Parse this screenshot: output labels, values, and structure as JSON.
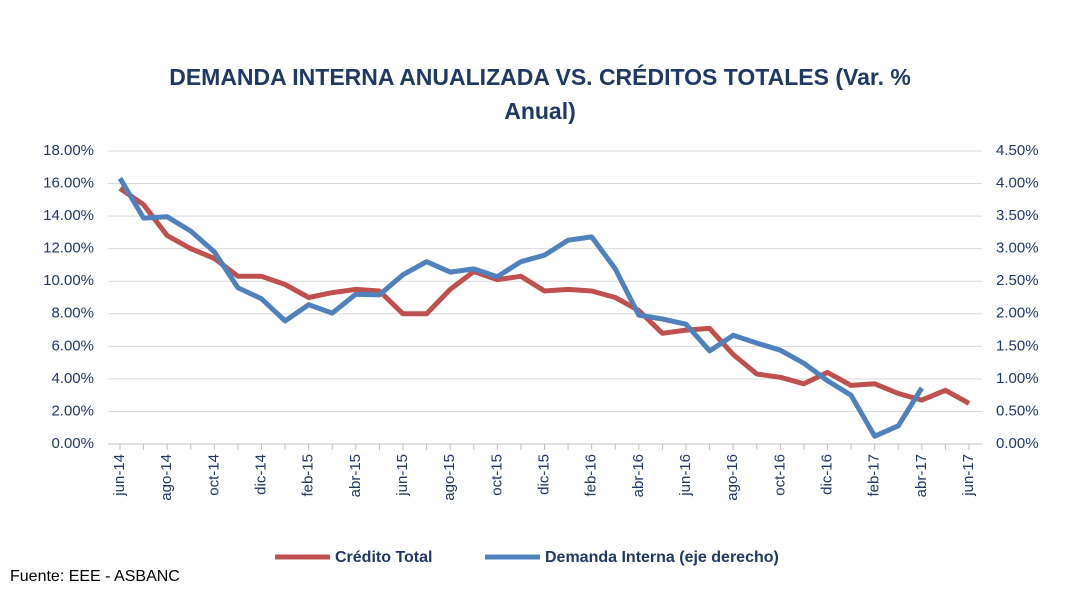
{
  "chart_data": {
    "type": "line",
    "title": "DEMANDA INTERNA ANUALIZADA VS. CRÉDITOS TOTALES (Var. % Anual)",
    "source": "Fuente: EEE - ASBANC",
    "categories": [
      "jun-14",
      null,
      "ago-14",
      null,
      "oct-14",
      null,
      "dic-14",
      null,
      "feb-15",
      null,
      "abr-15",
      null,
      "jun-15",
      null,
      "ago-15",
      null,
      "oct-15",
      null,
      "dic-15",
      null,
      "feb-16",
      null,
      "abr-16",
      null,
      "jun-16",
      null,
      "ago-16",
      null,
      "oct-16",
      null,
      "dic-16",
      null,
      "feb-17",
      null,
      "abr-17",
      null,
      "jun-17"
    ],
    "series": [
      {
        "name": "Crédito Total",
        "color": "#c0504d",
        "values": [
          15.7,
          14.7,
          12.8,
          12.0,
          11.4,
          10.3,
          10.3,
          9.8,
          9.0,
          9.3,
          9.5,
          9.4,
          8.0,
          8.0,
          9.5,
          10.6,
          10.1,
          10.3,
          9.4,
          9.5,
          9.4,
          9.0,
          8.2,
          6.8,
          7.0,
          7.1,
          5.5,
          4.3,
          4.1,
          3.7,
          4.4,
          3.6,
          3.7,
          3.1,
          2.7,
          3.3,
          2.5
        ]
      },
      {
        "name": "Demanda Interna (eje derecho)",
        "color": "#4f81bd",
        "axis": "y2",
        "values": [
          4.08,
          3.47,
          3.49,
          3.27,
          2.95,
          2.4,
          2.23,
          1.89,
          2.14,
          2.01,
          2.3,
          2.29,
          2.6,
          2.8,
          2.64,
          2.69,
          2.57,
          2.8,
          2.9,
          3.13,
          3.18,
          2.69,
          1.98,
          1.92,
          1.84,
          1.43,
          1.67,
          1.55,
          1.44,
          1.24,
          0.97,
          0.75,
          0.12,
          0.28,
          0.86,
          null,
          null
        ]
      }
    ],
    "ylim": [
      0,
      18
    ],
    "yticks": [
      {
        "value": 0,
        "label": "0.00%"
      },
      {
        "value": 2,
        "label": "2.00%"
      },
      {
        "value": 4,
        "label": "4.00%"
      },
      {
        "value": 6,
        "label": "6.00%"
      },
      {
        "value": 8,
        "label": "8.00%"
      },
      {
        "value": 10,
        "label": "10.00%"
      },
      {
        "value": 12,
        "label": "12.00%"
      },
      {
        "value": 14,
        "label": "14.00%"
      },
      {
        "value": 16,
        "label": "16.00%"
      },
      {
        "value": 18,
        "label": "18.00%"
      }
    ],
    "y2lim": [
      0,
      4.5
    ],
    "y2ticks": [
      {
        "value": 0,
        "label": "0.00%"
      },
      {
        "value": 0.5,
        "label": "0.50%"
      },
      {
        "value": 1,
        "label": "1.00%"
      },
      {
        "value": 1.5,
        "label": "1.50%"
      },
      {
        "value": 2,
        "label": "2.00%"
      },
      {
        "value": 2.5,
        "label": "2.50%"
      },
      {
        "value": 3,
        "label": "3.00%"
      },
      {
        "value": 3.5,
        "label": "3.50%"
      },
      {
        "value": 4,
        "label": "4.00%"
      },
      {
        "value": 4.5,
        "label": "4.50%"
      }
    ],
    "grid": true,
    "legend": "bottom"
  }
}
